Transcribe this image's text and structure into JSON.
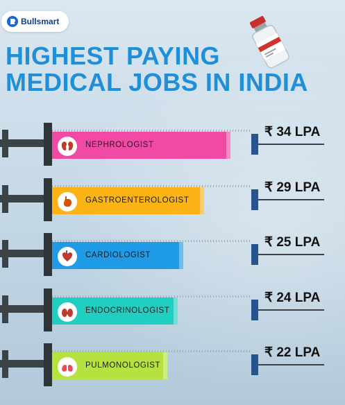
{
  "brand": {
    "name": "Bullsmart"
  },
  "title": {
    "line1": "HIGHEST PAYING",
    "line2": "MEDICAL JOBS IN INDIA"
  },
  "chart_data": {
    "type": "bar",
    "orientation": "horizontal",
    "title": "HIGHEST PAYING MEDICAL JOBS IN INDIA",
    "categories": [
      "NEPHROLOGIST",
      "GASTROENTEROLOGIST",
      "CARDIOLOGIST",
      "ENDOCRINOLOGIST",
      "PULMONOLOGIST"
    ],
    "values": [
      34,
      29,
      25,
      24,
      22
    ],
    "value_labels": [
      "₹ 34 LPA",
      "₹ 29 LPA",
      "₹ 25 LPA",
      "₹ 24 LPA",
      "₹ 22 LPA"
    ],
    "unit": "LPA",
    "colors": [
      "#f04aa4",
      "#fbb315",
      "#1e9ae6",
      "#21cfc2",
      "#b5e23f"
    ],
    "icons": [
      "kidney-icon",
      "stomach-icon",
      "heart-icon",
      "thyroid-icon",
      "lungs-icon"
    ]
  }
}
